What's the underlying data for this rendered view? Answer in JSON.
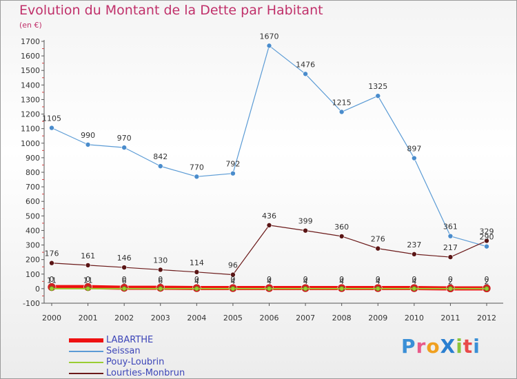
{
  "chart_data": {
    "type": "line",
    "title": "Evolution du Montant de la Dette par Habitant",
    "subtitle": "(en €)",
    "x": [
      "2000",
      "2001",
      "2002",
      "2003",
      "2004",
      "2005",
      "2006",
      "2007",
      "2008",
      "2009",
      "2010",
      "2011",
      "2012"
    ],
    "ylim": [
      -100,
      1700
    ],
    "yticks": [
      -100,
      0,
      100,
      200,
      300,
      400,
      500,
      600,
      700,
      800,
      900,
      1000,
      1100,
      1200,
      1300,
      1400,
      1500,
      1600,
      1700
    ],
    "grid": false,
    "legend_position": "bottom-left",
    "series": [
      {
        "name": "LABARTHE",
        "color": "#ee1111",
        "values": [
          11,
          11,
          6,
          6,
          4,
          4,
          4,
          4,
          4,
          4,
          4,
          2,
          2
        ],
        "labels": [
          "11",
          "11",
          "6",
          "6",
          "4",
          "4",
          "4",
          "4",
          "4",
          "4",
          "4",
          "2",
          "2"
        ]
      },
      {
        "name": "Seissan",
        "color": "#5b9bd5",
        "values": [
          1105,
          990,
          970,
          842,
          770,
          792,
          1670,
          1476,
          1215,
          1325,
          897,
          361,
          290
        ],
        "labels": [
          "1105",
          "990",
          "970",
          "842",
          "770",
          "792",
          "1670",
          "1476",
          "1215",
          "1325",
          "897",
          "361",
          "290"
        ]
      },
      {
        "name": "Pouy-Loubrin",
        "color": "#9acd32",
        "values": [
          0,
          0,
          0,
          0,
          0,
          0,
          0,
          0,
          0,
          0,
          0,
          0,
          0
        ],
        "labels": [
          "0",
          "0",
          "0",
          "0",
          "0",
          "0",
          "0",
          "0",
          "0",
          "0",
          "0",
          "0",
          "0"
        ]
      },
      {
        "name": "Lourties-Monbrun",
        "color": "#6b1a1a",
        "values": [
          176,
          161,
          146,
          130,
          114,
          96,
          436,
          399,
          360,
          276,
          237,
          217,
          329
        ],
        "labels": [
          "176",
          "161",
          "146",
          "130",
          "114",
          "96",
          "436",
          "399",
          "360",
          "276",
          "237",
          "217",
          "329"
        ]
      }
    ]
  },
  "logo": {
    "text": "ProXiti"
  }
}
